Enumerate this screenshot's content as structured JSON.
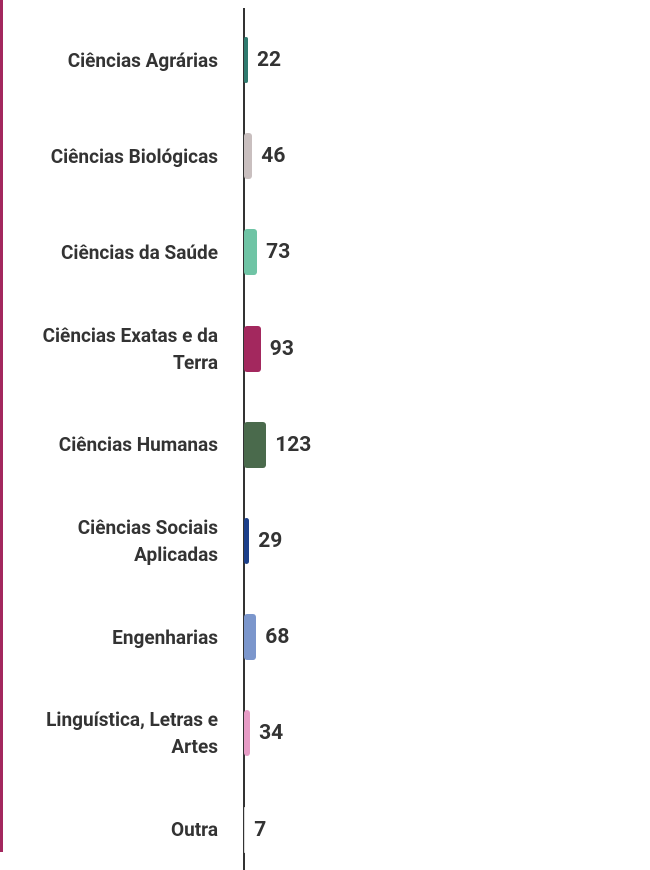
{
  "chart_data": {
    "type": "barh",
    "categories": [
      "Ciências Agrárias",
      "Ciências Biológicas",
      "Ciências da Saúde",
      "Ciências Exatas e da Terra",
      "Ciências Humanas",
      "Ciências Sociais Aplicadas",
      "Engenharias",
      "Linguística, Letras e Artes",
      "Outra"
    ],
    "values": [
      22,
      46,
      73,
      93,
      123,
      29,
      68,
      34,
      7
    ],
    "colors": [
      "#2f7a6e",
      "#c9bfbf",
      "#6fc4a5",
      "#a3285e",
      "#4a6a4c",
      "#1c3f8a",
      "#7b96cc",
      "#e79cc6",
      "#d9d9d9"
    ],
    "xlim": [
      0,
      2250
    ]
  }
}
